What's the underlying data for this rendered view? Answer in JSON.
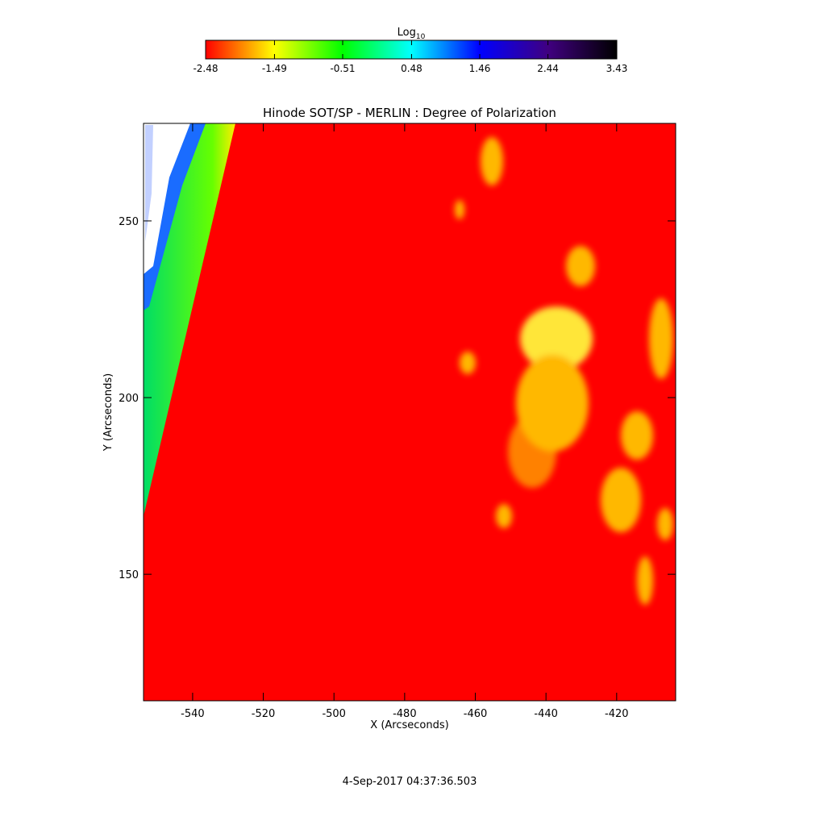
{
  "chart_data": {
    "type": "image",
    "title": "Hinode SOT/SP - MERLIN : Degree of Polarization",
    "x_label": "X (Arcseconds)",
    "y_label": "Y (Arcseconds)",
    "xlim": [
      -553.9,
      -403.3
    ],
    "xticks": [
      -540,
      -520,
      -500,
      -480,
      -460,
      -440,
      -420
    ],
    "ylim": [
      114.2,
      277.6
    ],
    "yticks": [
      150,
      200,
      250
    ],
    "colorbar": {
      "label": "Log",
      "label_sub": "10",
      "lim": [
        -2.48,
        3.43
      ],
      "ticks": [
        -2.48,
        -1.49,
        -0.51,
        0.48,
        1.46,
        2.44,
        3.43
      ],
      "colors": [
        "#ff0000",
        "#ffff00",
        "#00ff00",
        "#00ffff",
        "#0000ff",
        "#400080",
        "#000000"
      ]
    },
    "footer": "4-Sep-2017 04:37:36.503"
  }
}
